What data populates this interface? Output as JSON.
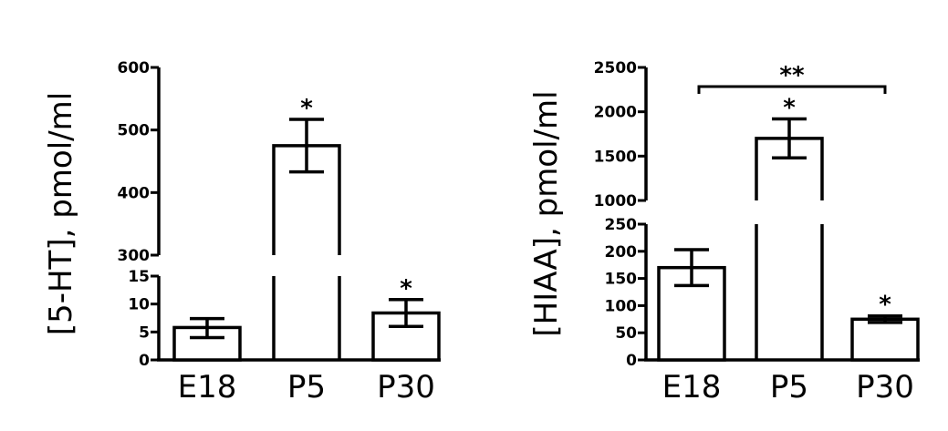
{
  "chart_data": [
    {
      "type": "bar",
      "ylabel": "[5-HT], pmol/ml",
      "categories": [
        "E18",
        "P5",
        "P30"
      ],
      "values": [
        5.8,
        475,
        8.4
      ],
      "errors": [
        [
          4.0,
          7.4
        ],
        [
          433,
          517
        ],
        [
          6.0,
          10.8
        ]
      ],
      "significance": [
        "",
        "*",
        "*"
      ],
      "y_axis_break": true,
      "lower_segment": {
        "ylim": [
          0,
          15
        ],
        "ticks": [
          "0",
          "5",
          "10",
          "15"
        ]
      },
      "upper_segment": {
        "ylim": [
          300,
          600
        ],
        "ticks": [
          "300",
          "400",
          "500",
          "600"
        ]
      },
      "brackets": []
    },
    {
      "type": "bar",
      "ylabel": "[HIAA], pmol/ml",
      "categories": [
        "E18",
        "P5",
        "P30"
      ],
      "values": [
        170,
        1700,
        75
      ],
      "errors": [
        [
          137,
          203
        ],
        [
          1480,
          1920
        ],
        [
          69,
          81
        ]
      ],
      "significance": [
        "",
        "*",
        "*"
      ],
      "y_axis_break": true,
      "lower_segment": {
        "ylim": [
          0,
          250
        ],
        "ticks": [
          "0",
          "50",
          "100",
          "150",
          "200",
          "250"
        ]
      },
      "upper_segment": {
        "ylim": [
          1000,
          2500
        ],
        "ticks": [
          "1000",
          "1500",
          "2000",
          "2500"
        ]
      },
      "brackets": [
        {
          "from": "E18",
          "to": "P30",
          "label": "**"
        }
      ]
    }
  ]
}
